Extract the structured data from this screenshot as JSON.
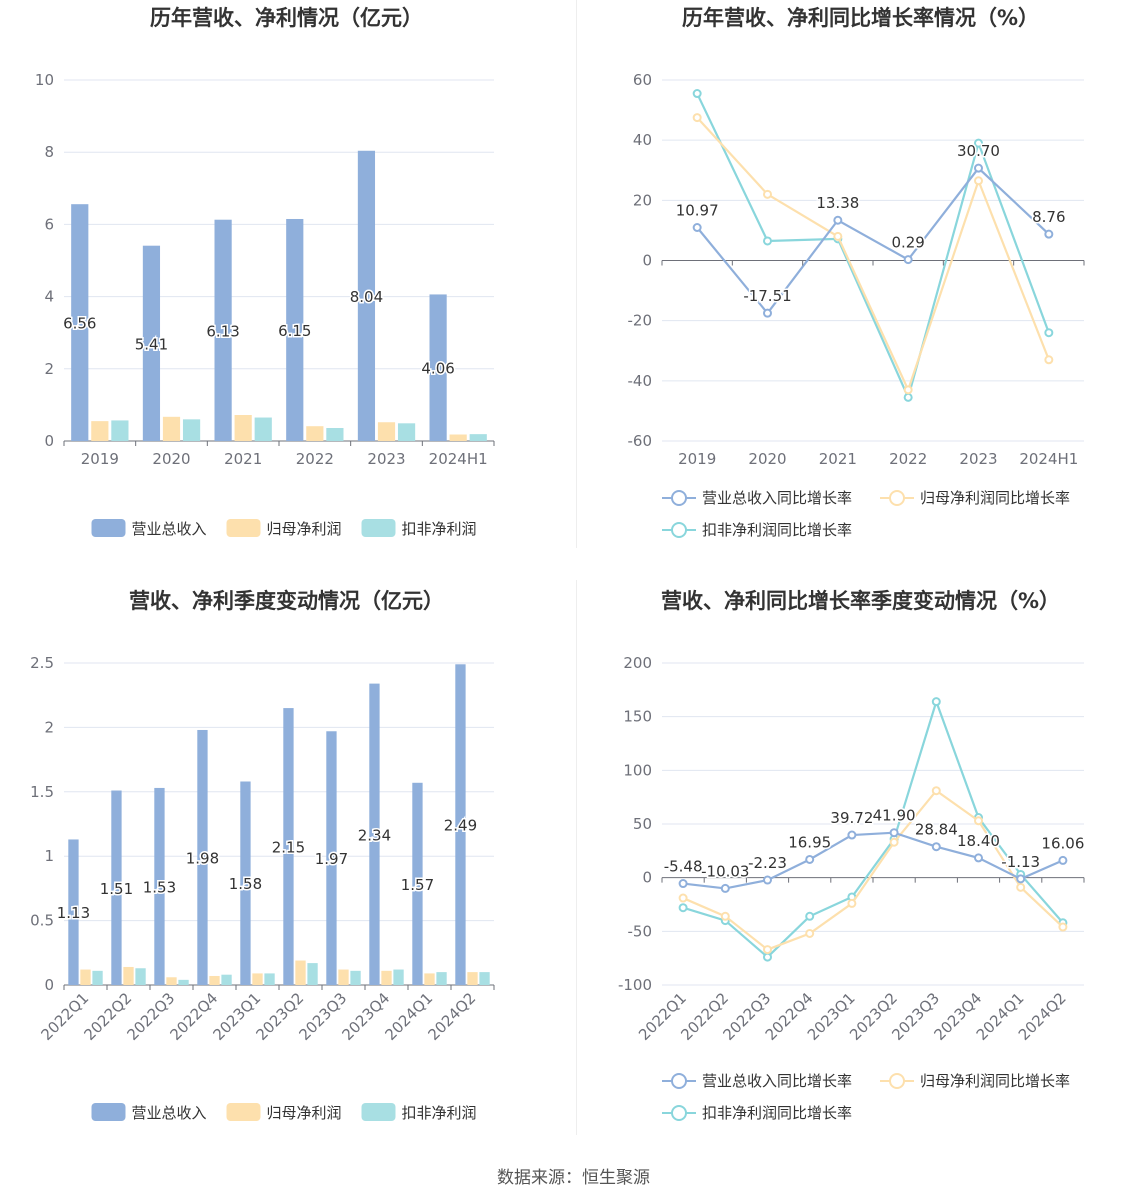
{
  "colors": {
    "revenue": "#8fafdb",
    "parent_net": "#fde0ad",
    "deducted_net": "#a8dfe3",
    "revenue_line": "#8fafdb",
    "parent_line": "#fde0ad",
    "deducted_line": "#89d6dc"
  },
  "footer": {
    "source": "数据来源：恒生聚源"
  },
  "chart_data": [
    {
      "type": "bar",
      "title": "历年营收、净利情况（亿元）",
      "categories": [
        "2019",
        "2020",
        "2021",
        "2022",
        "2023",
        "2024H1"
      ],
      "ylim": [
        0,
        10
      ],
      "yticks": [
        0,
        2,
        4,
        6,
        8,
        10
      ],
      "ytick_labels": [
        "0",
        "2",
        "4",
        "6",
        "8",
        "10"
      ],
      "legend": "bottom",
      "series": [
        {
          "name": "营业总收入",
          "color_key": "revenue",
          "values": [
            6.56,
            5.41,
            6.13,
            6.15,
            8.04,
            4.06
          ],
          "labels": [
            "6.56",
            "5.41",
            "6.13",
            "6.15",
            "8.04",
            "4.06"
          ]
        },
        {
          "name": "归母净利润",
          "color_key": "parent_net",
          "values": [
            0.55,
            0.67,
            0.72,
            0.41,
            0.52,
            0.18
          ]
        },
        {
          "name": "扣非净利润",
          "color_key": "deducted_net",
          "values": [
            0.57,
            0.6,
            0.65,
            0.36,
            0.49,
            0.19
          ]
        }
      ]
    },
    {
      "type": "line",
      "title": "历年营收、净利同比增长率情况（%）",
      "categories": [
        "2019",
        "2020",
        "2021",
        "2022",
        "2023",
        "2024H1"
      ],
      "ylim": [
        -60,
        60
      ],
      "yticks": [
        -60,
        -40,
        -20,
        0,
        20,
        40,
        60
      ],
      "ytick_labels": [
        "-60",
        "-40",
        "-20",
        "0",
        "20",
        "40",
        "60"
      ],
      "legend": "bottom",
      "series": [
        {
          "name": "营业总收入同比增长率",
          "color_key": "revenue_line",
          "values": [
            10.97,
            -17.51,
            13.38,
            0.29,
            30.7,
            8.76
          ],
          "labels": [
            "10.97",
            "-17.51",
            "13.38",
            "0.29",
            "30.70",
            "8.76"
          ]
        },
        {
          "name": "归母净利润同比增长率",
          "color_key": "parent_line",
          "values": [
            47.5,
            22,
            8,
            -43,
            26.5,
            -33
          ]
        },
        {
          "name": "扣非净利润同比增长率",
          "color_key": "deducted_line",
          "values": [
            55.5,
            6.5,
            7.2,
            -45.5,
            39,
            -24
          ]
        }
      ]
    },
    {
      "type": "bar",
      "title": "营收、净利季度变动情况（亿元）",
      "categories": [
        "2022Q1",
        "2022Q2",
        "2022Q3",
        "2022Q4",
        "2023Q1",
        "2023Q2",
        "2023Q3",
        "2023Q4",
        "2024Q1",
        "2024Q2"
      ],
      "ylim": [
        0,
        2.5
      ],
      "yticks": [
        0,
        0.5,
        1,
        1.5,
        2,
        2.5
      ],
      "ytick_labels": [
        "0",
        "0.5",
        "1",
        "1.5",
        "2",
        "2.5"
      ],
      "rotate_x": true,
      "legend": "bottom",
      "series": [
        {
          "name": "营业总收入",
          "color_key": "revenue",
          "values": [
            1.13,
            1.51,
            1.53,
            1.98,
            1.58,
            2.15,
            1.97,
            2.34,
            1.57,
            2.49
          ],
          "labels": [
            "1.13",
            "1.51",
            "1.53",
            "1.98",
            "1.58",
            "2.15",
            "1.97",
            "2.34",
            "1.57",
            "2.49"
          ]
        },
        {
          "name": "归母净利润",
          "color_key": "parent_net",
          "values": [
            0.12,
            0.14,
            0.06,
            0.07,
            0.09,
            0.19,
            0.12,
            0.11,
            0.09,
            0.1
          ]
        },
        {
          "name": "扣非净利润",
          "color_key": "deducted_net",
          "values": [
            0.11,
            0.13,
            0.04,
            0.08,
            0.09,
            0.17,
            0.11,
            0.12,
            0.1,
            0.1
          ]
        }
      ]
    },
    {
      "type": "line",
      "title": "营收、净利同比增长率季度变动情况（%）",
      "categories": [
        "2022Q1",
        "2022Q2",
        "2022Q3",
        "2022Q4",
        "2023Q1",
        "2023Q2",
        "2023Q3",
        "2023Q4",
        "2024Q1",
        "2024Q2"
      ],
      "ylim": [
        -100,
        200
      ],
      "yticks": [
        -100,
        -50,
        0,
        50,
        100,
        150,
        200
      ],
      "ytick_labels": [
        "-100",
        "-50",
        "0",
        "50",
        "100",
        "150",
        "200"
      ],
      "rotate_x": true,
      "legend": "bottom",
      "series": [
        {
          "name": "营业总收入同比增长率",
          "color_key": "revenue_line",
          "values": [
            -5.48,
            -10.03,
            -2.23,
            16.95,
            39.72,
            41.9,
            28.84,
            18.4,
            -1.13,
            16.06
          ],
          "labels": [
            "-5.48",
            "-10.03",
            "-2.23",
            "16.95",
            "39.72",
            "41.90",
            "28.84",
            "18.40",
            "-1.13",
            "16.06"
          ]
        },
        {
          "name": "归母净利润同比增长率",
          "color_key": "parent_line",
          "values": [
            -19,
            -36,
            -67,
            -52,
            -24,
            33,
            81,
            53,
            -9,
            -46
          ]
        },
        {
          "name": "扣非净利润同比增长率",
          "color_key": "deducted_line",
          "values": [
            -28,
            -40,
            -74,
            -36,
            -18,
            36,
            164,
            56,
            3,
            -42
          ]
        }
      ]
    }
  ]
}
